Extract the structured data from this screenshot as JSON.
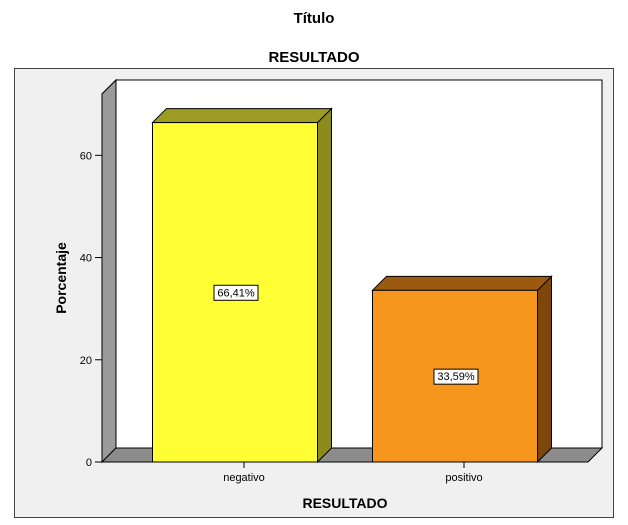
{
  "page": {
    "title": "Título",
    "subtitle": "RESULTADO"
  },
  "chart_data": {
    "type": "bar",
    "title": "RESULTADO",
    "xlabel": "RESULTADO",
    "ylabel": "Porcentaje",
    "categories": [
      "negativo",
      "positivo"
    ],
    "values": [
      66.41,
      33.59
    ],
    "data_labels": [
      "66,41%",
      "33,59%"
    ],
    "bar_colors": [
      "#ffff33",
      "#f7961d"
    ],
    "bar_top_colors": [
      "#9c9c24",
      "#9c5a10"
    ],
    "bar_side_colors": [
      "#8c8c1c",
      "#7d470c"
    ],
    "y_ticks": [
      0,
      20,
      40,
      60
    ],
    "ylim": [
      0,
      72
    ],
    "style": "3d",
    "grid": false,
    "legend": "none"
  }
}
